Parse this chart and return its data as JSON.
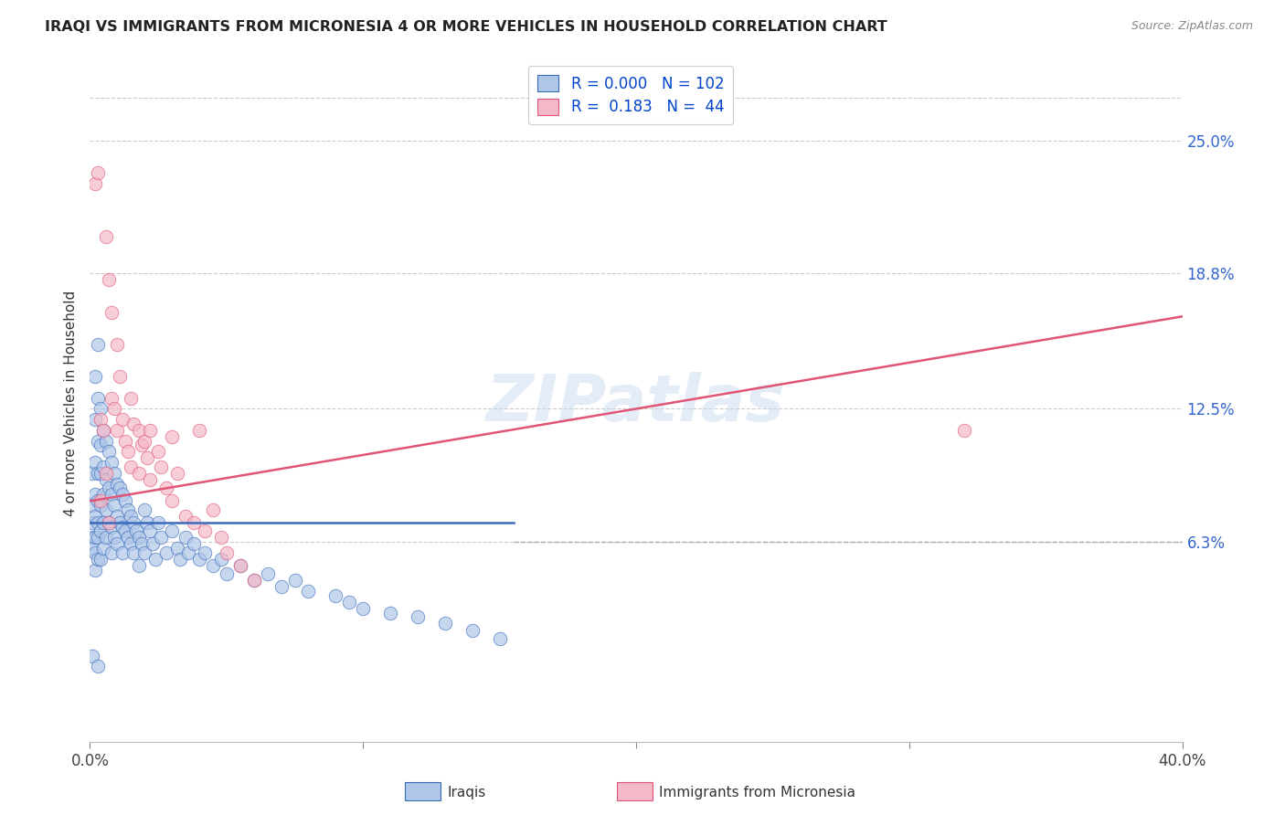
{
  "title": "IRAQI VS IMMIGRANTS FROM MICRONESIA 4 OR MORE VEHICLES IN HOUSEHOLD CORRELATION CHART",
  "source": "Source: ZipAtlas.com",
  "ylabel": "4 or more Vehicles in Household",
  "ytick_labels": [
    "25.0%",
    "18.8%",
    "12.5%",
    "6.3%"
  ],
  "ytick_values": [
    0.25,
    0.188,
    0.125,
    0.063
  ],
  "xlim": [
    0.0,
    0.4
  ],
  "ylim": [
    -0.03,
    0.285
  ],
  "legend_label1": "Iraqis",
  "legend_label2": "Immigrants from Micronesia",
  "legend_r1": "0.000",
  "legend_n1": "102",
  "legend_r2": "0.183",
  "legend_n2": "44",
  "color_blue": "#aec6e8",
  "color_pink": "#f5b8c8",
  "line_blue": "#3a6bbb",
  "line_pink": "#e05575",
  "watermark": "ZIPatlas",
  "blue_line_x": [
    0.0,
    0.155
  ],
  "blue_line_y": [
    0.072,
    0.072
  ],
  "pink_line_x": [
    0.0,
    0.4
  ],
  "pink_line_y": [
    0.082,
    0.168
  ],
  "dashed_line_y": 0.063,
  "dashed_line_x_start": 0.155,
  "iraqis_x": [
    0.001,
    0.001,
    0.001,
    0.001,
    0.001,
    0.002,
    0.002,
    0.002,
    0.002,
    0.002,
    0.002,
    0.002,
    0.002,
    0.003,
    0.003,
    0.003,
    0.003,
    0.003,
    0.003,
    0.003,
    0.003,
    0.004,
    0.004,
    0.004,
    0.004,
    0.004,
    0.004,
    0.005,
    0.005,
    0.005,
    0.005,
    0.005,
    0.006,
    0.006,
    0.006,
    0.006,
    0.007,
    0.007,
    0.007,
    0.008,
    0.008,
    0.008,
    0.008,
    0.009,
    0.009,
    0.009,
    0.01,
    0.01,
    0.01,
    0.011,
    0.011,
    0.012,
    0.012,
    0.012,
    0.013,
    0.013,
    0.014,
    0.014,
    0.015,
    0.015,
    0.016,
    0.016,
    0.017,
    0.018,
    0.018,
    0.019,
    0.02,
    0.02,
    0.021,
    0.022,
    0.023,
    0.024,
    0.025,
    0.026,
    0.028,
    0.03,
    0.032,
    0.033,
    0.035,
    0.036,
    0.038,
    0.04,
    0.042,
    0.045,
    0.048,
    0.05,
    0.055,
    0.06,
    0.065,
    0.07,
    0.075,
    0.08,
    0.09,
    0.095,
    0.1,
    0.11,
    0.12,
    0.13,
    0.14,
    0.15,
    0.001,
    0.003
  ],
  "iraqis_y": [
    0.095,
    0.08,
    0.072,
    0.065,
    0.06,
    0.14,
    0.12,
    0.1,
    0.085,
    0.075,
    0.065,
    0.058,
    0.05,
    0.155,
    0.13,
    0.11,
    0.095,
    0.082,
    0.072,
    0.065,
    0.055,
    0.125,
    0.108,
    0.095,
    0.08,
    0.068,
    0.055,
    0.115,
    0.098,
    0.085,
    0.072,
    0.06,
    0.11,
    0.092,
    0.078,
    0.065,
    0.105,
    0.088,
    0.072,
    0.1,
    0.085,
    0.07,
    0.058,
    0.095,
    0.08,
    0.065,
    0.09,
    0.075,
    0.062,
    0.088,
    0.072,
    0.085,
    0.07,
    0.058,
    0.082,
    0.068,
    0.078,
    0.065,
    0.075,
    0.062,
    0.072,
    0.058,
    0.068,
    0.065,
    0.052,
    0.062,
    0.078,
    0.058,
    0.072,
    0.068,
    0.062,
    0.055,
    0.072,
    0.065,
    0.058,
    0.068,
    0.06,
    0.055,
    0.065,
    0.058,
    0.062,
    0.055,
    0.058,
    0.052,
    0.055,
    0.048,
    0.052,
    0.045,
    0.048,
    0.042,
    0.045,
    0.04,
    0.038,
    0.035,
    0.032,
    0.03,
    0.028,
    0.025,
    0.022,
    0.018,
    0.01,
    0.005
  ],
  "micronesia_x": [
    0.002,
    0.003,
    0.004,
    0.005,
    0.006,
    0.006,
    0.007,
    0.008,
    0.008,
    0.009,
    0.01,
    0.01,
    0.011,
    0.012,
    0.013,
    0.014,
    0.015,
    0.015,
    0.016,
    0.018,
    0.018,
    0.019,
    0.02,
    0.021,
    0.022,
    0.022,
    0.025,
    0.026,
    0.028,
    0.03,
    0.03,
    0.032,
    0.035,
    0.038,
    0.04,
    0.042,
    0.045,
    0.048,
    0.05,
    0.055,
    0.06,
    0.32,
    0.004,
    0.007
  ],
  "micronesia_y": [
    0.23,
    0.235,
    0.12,
    0.115,
    0.205,
    0.095,
    0.185,
    0.17,
    0.13,
    0.125,
    0.155,
    0.115,
    0.14,
    0.12,
    0.11,
    0.105,
    0.13,
    0.098,
    0.118,
    0.115,
    0.095,
    0.108,
    0.11,
    0.102,
    0.115,
    0.092,
    0.105,
    0.098,
    0.088,
    0.112,
    0.082,
    0.095,
    0.075,
    0.072,
    0.115,
    0.068,
    0.078,
    0.065,
    0.058,
    0.052,
    0.045,
    0.115,
    0.082,
    0.072
  ]
}
